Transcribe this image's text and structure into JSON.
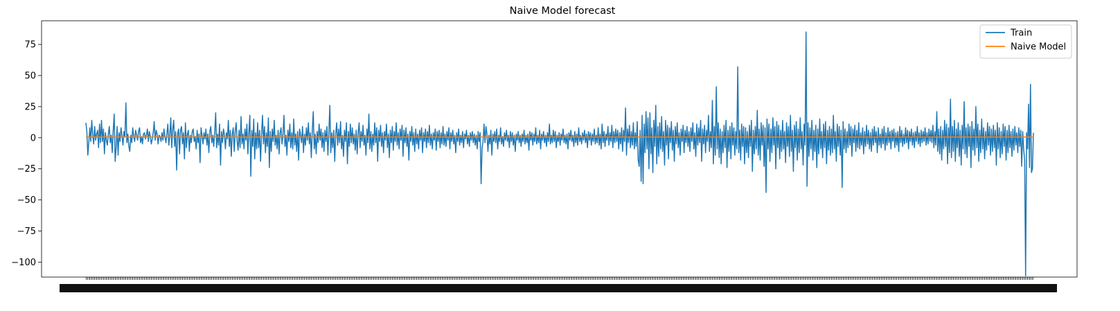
{
  "chart_data": {
    "type": "line",
    "title": "Naive Model forecast",
    "xlabel": "",
    "ylabel": "",
    "ylim": [
      -112,
      94
    ],
    "y_ticks": [
      75,
      50,
      25,
      0,
      -25,
      -50,
      -75,
      -100
    ],
    "y_tick_labels": [
      "75",
      "50",
      "25",
      "0",
      "−25",
      "−50",
      "−75",
      "−100"
    ],
    "x_tick_labels": "overlapping date labels (illegible)",
    "grid": false,
    "legend_position": "top-right",
    "series": [
      {
        "name": "Train",
        "color": "#1f77b4",
        "values": [
          12,
          5,
          -14,
          -4,
          8,
          -3,
          14,
          2,
          -5,
          9,
          -2,
          3,
          6,
          -8,
          11,
          -4,
          14,
          -3,
          7,
          -13,
          4,
          -2,
          -6,
          3,
          9,
          -4,
          2,
          -12,
          6,
          19,
          -19,
          -8,
          9,
          -14,
          4,
          -3,
          8,
          2,
          -6,
          5,
          1,
          28,
          -4,
          3,
          -7,
          -11,
          2,
          -4,
          8,
          1,
          -3,
          6,
          2,
          -2,
          5,
          8,
          -4,
          1,
          -5,
          3,
          4,
          -1,
          2,
          7,
          -3,
          5,
          1,
          -5,
          -1,
          4,
          13,
          -2,
          6,
          3,
          -5,
          2,
          1,
          -3,
          4,
          -2,
          7,
          1,
          -4,
          3,
          11,
          -6,
          2,
          16,
          -8,
          7,
          14,
          -7,
          5,
          -26,
          3,
          7,
          -13,
          6,
          9,
          -5,
          4,
          -17,
          12,
          -8,
          3,
          6,
          -11,
          2,
          -4,
          5,
          7,
          -3,
          1,
          -9,
          6,
          -4,
          3,
          -20,
          8,
          2,
          -5,
          4,
          -1,
          7,
          -6,
          3,
          -12,
          5,
          9,
          -4,
          2,
          -7,
          4,
          20,
          -8,
          3,
          -6,
          11,
          -22,
          5,
          -4,
          7,
          2,
          -9,
          4,
          -1,
          14,
          -7,
          6,
          -15,
          3,
          8,
          -11,
          5,
          12,
          -3,
          -10,
          6,
          -8,
          17,
          -5,
          3,
          -9,
          7,
          -2,
          11,
          -13,
          4,
          18,
          -31,
          6,
          -7,
          15,
          -17,
          4,
          -9,
          12,
          -8,
          6,
          -19,
          3,
          18,
          -5,
          9,
          -12,
          4,
          -7,
          16,
          -24,
          5,
          -11,
          7,
          -3,
          14,
          -6,
          2,
          -9,
          6,
          -13,
          4,
          8,
          -5,
          3,
          18,
          -7,
          2,
          -14,
          6,
          -3,
          11,
          -8,
          4,
          -9,
          15,
          -6,
          3,
          -11,
          5,
          -18,
          7,
          2,
          -4,
          9,
          -12,
          3,
          -6,
          8,
          -2,
          12,
          -5,
          4,
          -16,
          6,
          21,
          -9,
          3,
          -13,
          5,
          -4,
          11,
          -2,
          7,
          -8,
          4,
          -11,
          6,
          -3,
          9,
          -14,
          5,
          26,
          -12,
          4,
          -8,
          6,
          -19,
          3,
          12,
          -6,
          7,
          -4,
          13,
          -9,
          2,
          -15,
          6,
          -3,
          12,
          -21,
          5,
          -7,
          11,
          -4,
          8,
          -5,
          3,
          -10,
          6,
          -13,
          4,
          12,
          -8,
          5,
          -3,
          10,
          -6,
          2,
          -14,
          7,
          -4,
          19,
          -9,
          5,
          -11,
          3,
          -6,
          12,
          -4,
          8,
          -19,
          6,
          -3,
          10,
          -7,
          4,
          -12,
          5,
          -2,
          11,
          -8,
          3,
          -16,
          6,
          -4,
          9,
          -10,
          5,
          -3,
          12,
          -6,
          4,
          -9,
          7,
          -2,
          10,
          -15,
          6,
          -4,
          8,
          -7,
          3,
          -18,
          5,
          -3,
          9,
          -6,
          4,
          -11,
          7,
          -5,
          3,
          -9,
          6,
          -2,
          8,
          -12,
          4,
          -3,
          7,
          -8,
          5,
          -4,
          10,
          -6,
          3,
          -9,
          4,
          -2,
          7,
          -10,
          5,
          -3,
          6,
          -8,
          4,
          -5,
          9,
          -6,
          3,
          -7,
          5,
          -2,
          8,
          -9,
          4,
          -3,
          6,
          -5,
          2,
          -12,
          4,
          -3,
          7,
          -6,
          2,
          -4,
          5,
          -8,
          3,
          -1,
          6,
          -5,
          2,
          -7,
          4,
          -2,
          5,
          -4,
          3,
          -6,
          2,
          -9,
          5,
          -3,
          4,
          -37,
          -8,
          -3,
          11,
          -4,
          9,
          3,
          -11,
          2,
          -5,
          6,
          -14,
          3,
          -3,
          5,
          -4,
          7,
          -9,
          2,
          -3,
          8,
          -5,
          1,
          -7,
          4,
          -2,
          6,
          -3,
          2,
          -8,
          5,
          -3,
          4,
          -6,
          2,
          -11,
          3,
          -2,
          5,
          -4,
          2,
          -7,
          3,
          -3,
          6,
          -5,
          2,
          -4,
          3,
          -10,
          5,
          -2,
          4,
          -6,
          3,
          -3,
          8,
          -5,
          2,
          -4,
          6,
          -9,
          3,
          -2,
          5,
          -4,
          2,
          -7,
          4,
          -3,
          11,
          -5,
          2,
          -4,
          6,
          -3,
          5,
          -8,
          2,
          -3,
          4,
          -6,
          3,
          -2,
          7,
          -4,
          2,
          -5,
          3,
          -9,
          4,
          -2,
          6,
          -3,
          2,
          -7,
          5,
          -4,
          3,
          -6,
          8,
          -3,
          2,
          -5,
          4,
          -2,
          6,
          -4,
          3,
          -8,
          5,
          -2,
          4,
          -6,
          3,
          -3,
          7,
          -5,
          2,
          -4,
          8,
          -6,
          3,
          -9,
          11,
          -4,
          5,
          -7,
          3,
          -2,
          9,
          -6,
          4,
          -3,
          10,
          -8,
          5,
          -4,
          7,
          -3,
          6,
          -9,
          4,
          -5,
          8,
          -11,
          6,
          -3,
          24,
          -14,
          7,
          -4,
          10,
          -8,
          5,
          -6,
          12,
          -9,
          4,
          -7,
          13,
          -18,
          -23,
          6,
          -35,
          18,
          -37,
          11,
          -12,
          21,
          -9,
          16,
          -25,
          20,
          -13,
          8,
          -28,
          14,
          -7,
          26,
          -21,
          9,
          -15,
          12,
          -9,
          17,
          -11,
          5,
          -22,
          14,
          -6,
          10,
          -17,
          8,
          -4,
          13,
          -10,
          6,
          -19,
          9,
          -5,
          12,
          -8,
          4,
          -14,
          7,
          -3,
          10,
          -12,
          6,
          -4,
          9,
          -7,
          5,
          -11,
          8,
          -3,
          12,
          -9,
          4,
          -15,
          11,
          -6,
          8,
          -4,
          14,
          -19,
          7,
          -5,
          10,
          -12,
          6,
          -3,
          18,
          -11,
          5,
          -8,
          30,
          -21,
          9,
          -14,
          41,
          -9,
          12,
          -16,
          7,
          -21,
          5,
          -12,
          10,
          -8,
          14,
          -24,
          6,
          -11,
          9,
          -17,
          12,
          -6,
          8,
          -14,
          5,
          -9,
          57,
          -12,
          6,
          -18,
          11,
          -7,
          9,
          -21,
          8,
          -12,
          5,
          -16,
          10,
          -7,
          14,
          -27,
          6,
          -13,
          9,
          -9,
          22,
          -14,
          7,
          -18,
          12,
          -6,
          10,
          -23,
          8,
          -44,
          15,
          -9,
          11,
          -19,
          7,
          -12,
          16,
          -6,
          9,
          -25,
          13,
          -8,
          10,
          -17,
          6,
          -11,
          14,
          -9,
          5,
          -20,
          12,
          -7,
          9,
          -15,
          18,
          -11,
          6,
          -27,
          10,
          -8,
          13,
          -18,
          7,
          -12,
          16,
          -9,
          5,
          -22,
          11,
          -6,
          85,
          -39,
          12,
          -15,
          8,
          -9,
          14,
          -18,
          6,
          -11,
          10,
          -24,
          7,
          -13,
          15,
          -9,
          5,
          -16,
          11,
          -8,
          13,
          -21,
          6,
          -10,
          9,
          -14,
          7,
          -12,
          18,
          -9,
          5,
          -19,
          11,
          -7,
          9,
          -14,
          6,
          -40,
          13,
          -9,
          7,
          -12,
          5,
          -8,
          11,
          -6,
          9,
          -15,
          7,
          -4,
          10,
          -11,
          6,
          -8,
          12,
          -9,
          4,
          -6,
          8,
          -13,
          5,
          -7,
          10,
          -5,
          6,
          -9,
          4,
          -11,
          7,
          -6,
          9,
          -4,
          5,
          -12,
          8,
          -6,
          3,
          -8,
          7,
          -5,
          9,
          -10,
          4,
          -6,
          8,
          -4,
          5,
          -9,
          6,
          -3,
          7,
          -8,
          4,
          -6,
          5,
          -11,
          9,
          -4,
          6,
          -7,
          3,
          -5,
          8,
          -4,
          6,
          -9,
          5,
          -3,
          7,
          -6,
          4,
          -8,
          5,
          -3,
          9,
          -5,
          4,
          -7,
          6,
          -4,
          5,
          -3,
          8,
          -6,
          4,
          -5,
          7,
          -3,
          6,
          -4,
          10,
          -8,
          5,
          -6,
          21,
          -11,
          7,
          -13,
          9,
          -18,
          6,
          -9,
          14,
          -7,
          11,
          -21,
          8,
          -12,
          31,
          -16,
          9,
          -11,
          14,
          -19,
          7,
          -8,
          12,
          -15,
          6,
          -22,
          10,
          -9,
          29,
          -13,
          8,
          -16,
          11,
          -7,
          9,
          -24,
          13,
          -10,
          7,
          -14,
          25,
          -8,
          11,
          -19,
          6,
          -12,
          15,
          -9,
          8,
          -17,
          5,
          -10,
          12,
          -6,
          9,
          -14,
          7,
          -11,
          10,
          -8,
          6,
          -22,
          12,
          -9,
          8,
          -16,
          5,
          -13,
          11,
          -7,
          9,
          -18,
          6,
          -12,
          10,
          -8,
          5,
          -15,
          7,
          -10,
          9,
          -6,
          4,
          -12,
          8,
          -7,
          6,
          -23,
          5,
          -9,
          -18,
          -111,
          4,
          -9,
          27,
          -24,
          43,
          -28,
          -25,
          4
        ]
      },
      {
        "name": "Naive Model",
        "color": "#ff7f0e",
        "constant_value": 0.5
      }
    ]
  }
}
